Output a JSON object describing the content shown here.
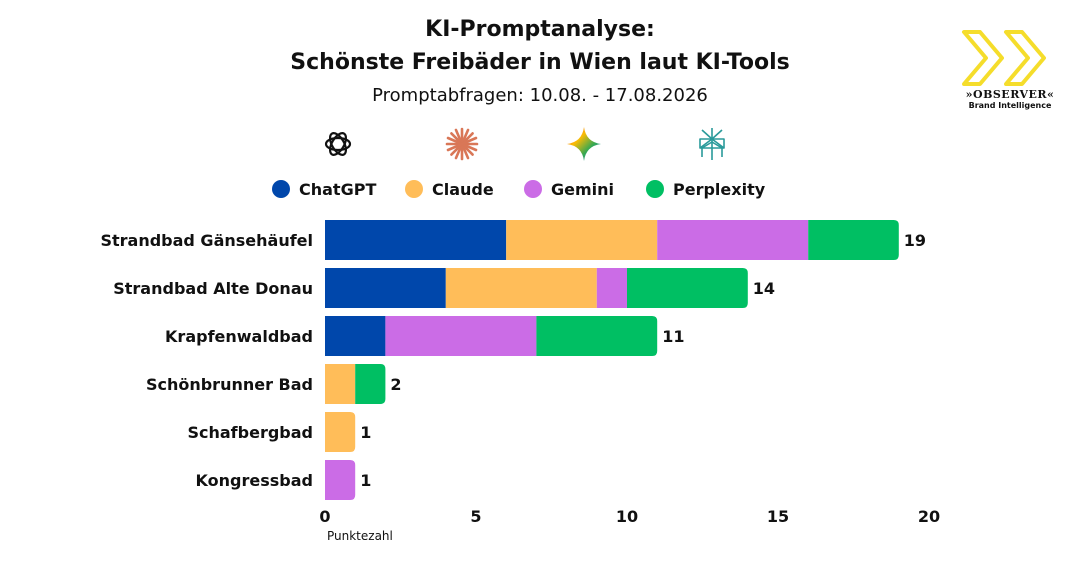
{
  "header": {
    "title_line1": "KI-Promptanalyse:",
    "title_line2": "Schönste Freibäder in Wien laut KI-Tools",
    "subtitle": "Promptabfragen: 10.08. - 17.08.2026"
  },
  "brand": {
    "name": "»OBSERVER«",
    "tagline": "Brand Intelligence",
    "icon": "double-chevron-logo",
    "color": "#F5DD2B"
  },
  "tool_logos": [
    {
      "name": "ChatGPT",
      "icon": "chatgpt-logo-icon"
    },
    {
      "name": "Claude",
      "icon": "claude-logo-icon"
    },
    {
      "name": "Gemini",
      "icon": "gemini-logo-icon"
    },
    {
      "name": "Perplexity",
      "icon": "perplexity-logo-icon"
    }
  ],
  "chart_data": {
    "type": "bar",
    "orientation": "horizontal",
    "stacked": true,
    "title": "KI-Promptanalyse: Schönste Freibäder in Wien laut KI-Tools",
    "subtitle": "Promptabfragen: 10.08. - 17.08.2026",
    "categories": [
      "Strandbad Gänsehäufel",
      "Strandbad Alte Donau",
      "Krapfenwaldbad",
      "Schönbrunner Bad",
      "Schafbergbad",
      "Kongressbad"
    ],
    "series": [
      {
        "name": "ChatGPT",
        "color": "#0047AB",
        "values": [
          6,
          4,
          2,
          0,
          0,
          0
        ]
      },
      {
        "name": "Claude",
        "color": "#FFBD59",
        "values": [
          5,
          5,
          0,
          1,
          1,
          0
        ]
      },
      {
        "name": "Gemini",
        "color": "#CB6CE6",
        "values": [
          5,
          1,
          5,
          0,
          0,
          1
        ]
      },
      {
        "name": "Perplexity",
        "color": "#00BF63",
        "values": [
          3,
          4,
          4,
          1,
          0,
          0
        ]
      }
    ],
    "totals": [
      "19",
      "14",
      "11",
      "2",
      "1",
      "1"
    ],
    "xlabel": "Punktezahl",
    "ylabel": "",
    "xlim": [
      0,
      20
    ],
    "xticks": [
      "0",
      "5",
      "10",
      "15",
      "20"
    ],
    "grid": false,
    "legend_position": "top"
  }
}
